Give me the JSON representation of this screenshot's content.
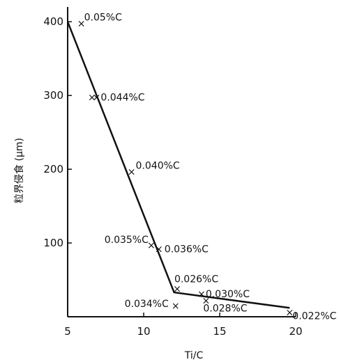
{
  "chart_data": {
    "type": "scatter",
    "xlabel": "Ti/C",
    "ylabel": "粒界侵食 (μm)",
    "xlim": [
      5,
      20
    ],
    "ylim": [
      0,
      420
    ],
    "x_ticks": [
      5,
      10,
      15,
      20
    ],
    "y_ticks": [
      100,
      200,
      300,
      400
    ],
    "x_tick_labels": [
      "5",
      "10",
      "15",
      "20"
    ],
    "y_tick_labels": [
      "100",
      "200",
      "300",
      "400"
    ],
    "grid": false,
    "points": [
      {
        "x": 5.9,
        "y": 398,
        "label": "0.05%C"
      },
      {
        "x": 6.6,
        "y": 298,
        "label": ""
      },
      {
        "x": 6.9,
        "y": 298,
        "label": "0.044%C"
      },
      {
        "x": 9.2,
        "y": 197,
        "label": "0.040%C"
      },
      {
        "x": 10.5,
        "y": 97,
        "label": "0.035%C"
      },
      {
        "x": 11.0,
        "y": 92,
        "label": "0.036%C"
      },
      {
        "x": 12.1,
        "y": 15,
        "label": "0.034%C"
      },
      {
        "x": 12.2,
        "y": 38,
        "label": "0.026%C"
      },
      {
        "x": 13.8,
        "y": 31,
        "label": "0.030%C"
      },
      {
        "x": 14.1,
        "y": 22,
        "label": "0.028%C"
      },
      {
        "x": 19.6,
        "y": 6,
        "label": "0.022%C"
      }
    ],
    "trend_line": {
      "x": [
        5.0,
        12.0,
        19.6
      ],
      "y": [
        400,
        33,
        12
      ]
    }
  }
}
